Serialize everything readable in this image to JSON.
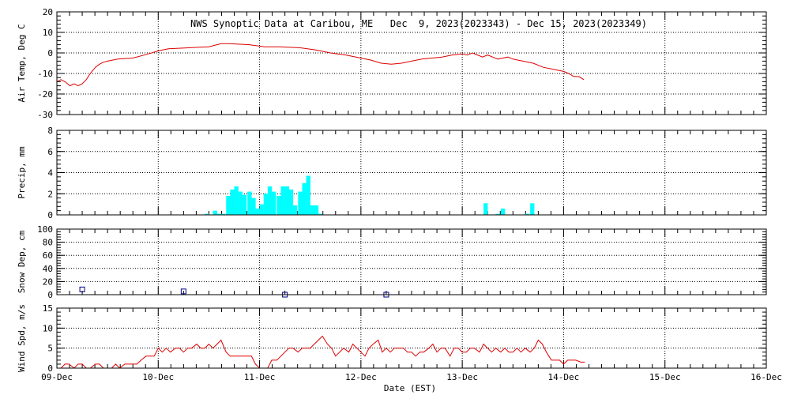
{
  "title": "NWS Synoptic Data at Caribou, ME   Dec  9, 2023(2023343) - Dec 15, 2023(2023349)",
  "xlabel": "Date (EST)",
  "x_ticks": [
    "09-Dec",
    "10-Dec",
    "11-Dec",
    "12-Dec",
    "13-Dec",
    "14-Dec",
    "15-Dec",
    "16-Dec"
  ],
  "colors": {
    "temp": "#dd0000",
    "precip": "#00ffff",
    "snow": "#000080",
    "wind": "#dd0000",
    "grid": "#000000"
  },
  "chart_data": [
    {
      "type": "line",
      "ylabel": "Air Temp, Deg C",
      "ylim": [
        -30,
        20
      ],
      "yticks": [
        -30,
        -20,
        -10,
        0,
        10,
        20
      ],
      "xlim": [
        0,
        7
      ],
      "grid": true,
      "series": [
        {
          "x": [
            0.0,
            0.04,
            0.08,
            0.13,
            0.17,
            0.21,
            0.25,
            0.29,
            0.33,
            0.38,
            0.42,
            0.46,
            0.5,
            0.6,
            0.75,
            0.9,
            1.0,
            1.1,
            1.3,
            1.5,
            1.62,
            1.7,
            1.9,
            2.05,
            2.2,
            2.4,
            2.55,
            2.7,
            2.85,
            3.0,
            3.1,
            3.2,
            3.3,
            3.4,
            3.5,
            3.6,
            3.7,
            3.8,
            3.9,
            4.0,
            4.05,
            4.1,
            4.15,
            4.2,
            4.25,
            4.3,
            4.35,
            4.45,
            4.5,
            4.55,
            4.6,
            4.7,
            4.8,
            4.9,
            5.0,
            5.05,
            5.1,
            5.15,
            5.2
          ],
          "y": [
            -14,
            -13,
            -14,
            -16,
            -15,
            -16,
            -15,
            -13,
            -10,
            -7,
            -5.5,
            -4.5,
            -4,
            -3,
            -2.5,
            -0.5,
            1,
            2,
            2.5,
            3,
            4.5,
            4.5,
            4,
            3,
            3,
            2.5,
            1.5,
            0,
            -1,
            -2.5,
            -3.5,
            -5,
            -5.5,
            -5,
            -4,
            -3,
            -2.5,
            -2,
            -1,
            -0.5,
            -1,
            0,
            -1,
            -2,
            -1,
            -2,
            -3,
            -2,
            -3,
            -3.5,
            -4,
            -5,
            -7,
            -8,
            -9,
            -10,
            -11.5,
            -11.5,
            -13
          ]
        }
      ]
    },
    {
      "type": "bar",
      "ylabel": "Precip, mm",
      "ylim": [
        0,
        8
      ],
      "yticks": [
        0,
        2,
        4,
        6,
        8
      ],
      "xlim": [
        0,
        7
      ],
      "grid": true,
      "bin_days": 0.0417,
      "bars": [
        {
          "x": 1.46,
          "v": 0.1
        },
        {
          "x": 1.54,
          "v": 0.4
        },
        {
          "x": 1.58,
          "v": 0.1
        },
        {
          "x": 1.62,
          "v": 0.1
        },
        {
          "x": 1.67,
          "v": 1.8
        },
        {
          "x": 1.71,
          "v": 2.4
        },
        {
          "x": 1.75,
          "v": 2.7
        },
        {
          "x": 1.79,
          "v": 2.2
        },
        {
          "x": 1.83,
          "v": 1.9
        },
        {
          "x": 1.88,
          "v": 2.2
        },
        {
          "x": 1.92,
          "v": 1.6
        },
        {
          "x": 1.96,
          "v": 0.6
        },
        {
          "x": 2.0,
          "v": 1.0
        },
        {
          "x": 2.04,
          "v": 2.0
        },
        {
          "x": 2.08,
          "v": 2.7
        },
        {
          "x": 2.12,
          "v": 2.2
        },
        {
          "x": 2.17,
          "v": 1.8
        },
        {
          "x": 2.21,
          "v": 2.7
        },
        {
          "x": 2.25,
          "v": 2.7
        },
        {
          "x": 2.29,
          "v": 2.4
        },
        {
          "x": 2.33,
          "v": 0.9
        },
        {
          "x": 2.38,
          "v": 2.2
        },
        {
          "x": 2.42,
          "v": 3.0
        },
        {
          "x": 2.46,
          "v": 3.7
        },
        {
          "x": 2.5,
          "v": 0.9
        },
        {
          "x": 2.54,
          "v": 0.9
        },
        {
          "x": 2.58,
          "v": 0.1
        },
        {
          "x": 4.21,
          "v": 1.1
        },
        {
          "x": 4.33,
          "v": 0.1
        },
        {
          "x": 4.38,
          "v": 0.6
        },
        {
          "x": 4.62,
          "v": 0.1
        },
        {
          "x": 4.67,
          "v": 1.1
        }
      ]
    },
    {
      "type": "scatter",
      "ylabel": "Snow Dep, cm",
      "ylim": [
        0,
        100
      ],
      "yticks": [
        0,
        20,
        40,
        60,
        80,
        100
      ],
      "xlim": [
        0,
        7
      ],
      "grid": true,
      "series": [
        {
          "x": [
            0.25,
            1.25,
            2.25,
            3.25
          ],
          "y": [
            8,
            5,
            0,
            0
          ]
        }
      ]
    },
    {
      "type": "line",
      "ylabel": "Wind Spd, m/s",
      "ylim": [
        0,
        15
      ],
      "yticks": [
        0,
        5,
        10,
        15
      ],
      "xlim": [
        0,
        7
      ],
      "grid": true,
      "series": [
        {
          "x": [
            0.0,
            0.04,
            0.08,
            0.12,
            0.17,
            0.21,
            0.25,
            0.29,
            0.33,
            0.38,
            0.42,
            0.46,
            0.5,
            0.54,
            0.58,
            0.62,
            0.67,
            0.71,
            0.75,
            0.79,
            0.83,
            0.88,
            0.92,
            0.96,
            1.0,
            1.04,
            1.08,
            1.12,
            1.17,
            1.21,
            1.25,
            1.29,
            1.33,
            1.38,
            1.42,
            1.46,
            1.5,
            1.54,
            1.58,
            1.62,
            1.67,
            1.71,
            1.75,
            1.79,
            1.83,
            1.88,
            1.92,
            1.96,
            2.0,
            2.04,
            2.08,
            2.12,
            2.17,
            2.21,
            2.25,
            2.29,
            2.33,
            2.38,
            2.42,
            2.46,
            2.5,
            2.54,
            2.58,
            2.62,
            2.67,
            2.71,
            2.75,
            2.79,
            2.83,
            2.88,
            2.92,
            2.96,
            3.0,
            3.04,
            3.08,
            3.12,
            3.17,
            3.21,
            3.25,
            3.29,
            3.33,
            3.38,
            3.42,
            3.46,
            3.5,
            3.54,
            3.58,
            3.62,
            3.67,
            3.71,
            3.75,
            3.79,
            3.83,
            3.88,
            3.92,
            3.96,
            4.0,
            4.04,
            4.08,
            4.12,
            4.17,
            4.21,
            4.25,
            4.29,
            4.33,
            4.38,
            4.42,
            4.46,
            4.5,
            4.54,
            4.58,
            4.62,
            4.67,
            4.71,
            4.75,
            4.79,
            4.83,
            4.88,
            4.92,
            4.96,
            5.0,
            5.04,
            5.08,
            5.12,
            5.17,
            5.21
          ],
          "y": [
            0,
            0,
            1,
            1,
            0,
            1,
            1,
            0,
            0,
            1,
            1,
            0,
            0,
            0,
            1,
            0,
            1,
            1,
            1,
            1,
            2,
            3,
            3,
            3,
            5,
            4,
            5,
            4,
            5,
            5,
            4,
            5,
            5,
            6,
            5,
            5,
            6,
            5,
            6,
            7,
            4,
            3,
            3,
            3,
            3,
            3,
            3,
            1,
            0,
            0,
            0,
            2,
            2,
            3,
            4,
            5,
            5,
            4,
            5,
            5,
            5,
            6,
            7,
            8,
            6,
            5,
            3,
            4,
            5,
            4,
            6,
            5,
            4,
            3,
            5,
            6,
            7,
            4,
            5,
            4,
            5,
            5,
            5,
            4,
            4,
            3,
            4,
            4,
            5,
            6,
            4,
            5,
            5,
            3,
            5,
            5,
            4,
            4,
            5,
            5,
            4,
            6,
            5,
            4,
            5,
            4,
            5,
            4,
            4,
            5,
            4,
            5,
            4,
            5,
            7,
            6,
            4,
            2,
            2,
            2,
            1,
            2,
            2,
            2,
            1.5,
            1.5
          ]
        }
      ]
    }
  ]
}
